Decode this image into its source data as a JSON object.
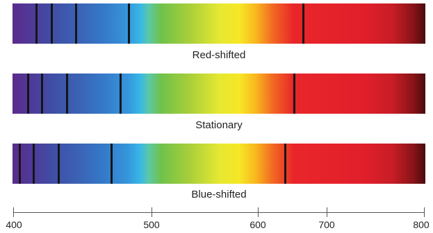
{
  "spectra": [
    {
      "caption": "Red-shifted"
    },
    {
      "caption": "Stationary"
    },
    {
      "caption": "Blue-shifted"
    }
  ],
  "axis": {
    "min": 400,
    "max": 800,
    "ticks": [
      {
        "value": 400,
        "label": "400"
      },
      {
        "value": 500,
        "label": "500"
      },
      {
        "value": 600,
        "label": "600"
      },
      {
        "value": 700,
        "label": "700"
      },
      {
        "value": 800,
        "label": "800"
      }
    ]
  },
  "colors": {
    "line": "#151515",
    "axis": "#555555",
    "text": "#222222"
  }
}
